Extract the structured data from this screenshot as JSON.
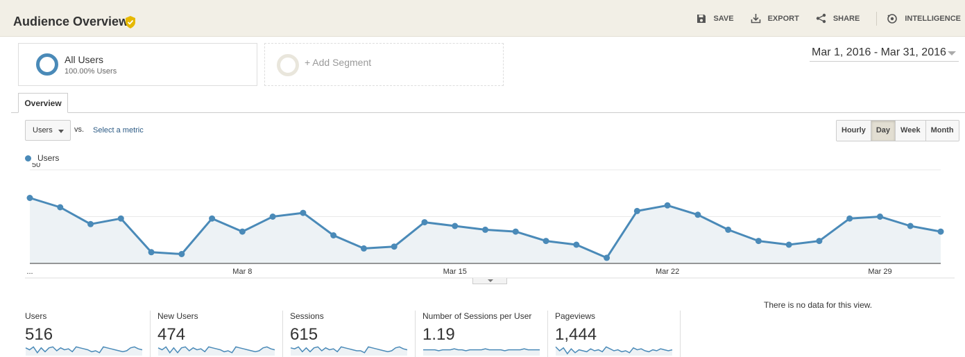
{
  "header": {
    "title": "Audience Overview",
    "actions": [
      {
        "label": "SAVE",
        "icon": "save-icon"
      },
      {
        "label": "EXPORT",
        "icon": "export-icon"
      },
      {
        "label": "SHARE",
        "icon": "share-icon"
      },
      {
        "label": "INTELLIGENCE",
        "icon": "intelligence-icon"
      }
    ]
  },
  "segments": {
    "all_users": {
      "name": "All Users",
      "subtitle": "100.00% Users"
    },
    "add_label": "+ Add Segment"
  },
  "date_range": "Mar 1, 2016 - Mar 31, 2016",
  "tabs": [
    {
      "label": "Overview",
      "active": true
    }
  ],
  "metric_bar": {
    "metric": "Users",
    "vs": "vs.",
    "select_metric": "Select a metric",
    "granularity": [
      "Hourly",
      "Day",
      "Week",
      "Month"
    ],
    "active_granularity": "Day"
  },
  "colors": {
    "series": "#4a8ab8",
    "area_fill": "#edf2f5",
    "header_bg": "#f2efe6"
  },
  "chart_data": {
    "type": "line",
    "legend": [
      "Users"
    ],
    "ylim": [
      0,
      50
    ],
    "yticks": [
      25,
      50
    ],
    "xtick_labels": [
      "...",
      "Mar 8",
      "Mar 15",
      "Mar 22",
      "Mar 29"
    ],
    "series": [
      {
        "name": "Users",
        "x": [
          "Mar 1",
          "Mar 2",
          "Mar 3",
          "Mar 4",
          "Mar 5",
          "Mar 6",
          "Mar 7",
          "Mar 8",
          "Mar 9",
          "Mar 10",
          "Mar 11",
          "Mar 12",
          "Mar 13",
          "Mar 14",
          "Mar 15",
          "Mar 16",
          "Mar 17",
          "Mar 18",
          "Mar 19",
          "Mar 20",
          "Mar 21",
          "Mar 22",
          "Mar 23",
          "Mar 24",
          "Mar 25",
          "Mar 26",
          "Mar 27",
          "Mar 28",
          "Mar 29",
          "Mar 30",
          "Mar 31"
        ],
        "values": [
          35,
          30,
          21,
          24,
          6,
          5,
          24,
          17,
          25,
          27,
          15,
          8,
          9,
          22,
          20,
          18,
          17,
          12,
          10,
          3,
          28,
          31,
          26,
          18,
          12,
          10,
          12,
          24,
          25,
          20,
          17
        ]
      }
    ]
  },
  "scorecards": [
    {
      "label": "Users",
      "value": "516",
      "spark": [
        8,
        6,
        9,
        3,
        8,
        4,
        8,
        9,
        5,
        8,
        6,
        7,
        4,
        9,
        8,
        7,
        6,
        4,
        5,
        3,
        9,
        8,
        7,
        6,
        5,
        4,
        5,
        8,
        9,
        7,
        6
      ]
    },
    {
      "label": "New Users",
      "value": "474",
      "spark": [
        8,
        6,
        9,
        3,
        8,
        3,
        8,
        9,
        5,
        8,
        6,
        7,
        4,
        9,
        8,
        7,
        6,
        4,
        5,
        3,
        9,
        8,
        7,
        6,
        5,
        4,
        5,
        8,
        9,
        7,
        6
      ]
    },
    {
      "label": "Sessions",
      "value": "615",
      "spark": [
        8,
        7,
        9,
        4,
        8,
        4,
        8,
        9,
        5,
        8,
        6,
        7,
        4,
        9,
        8,
        7,
        6,
        5,
        5,
        3,
        9,
        8,
        7,
        6,
        5,
        4,
        5,
        8,
        9,
        7,
        6
      ]
    },
    {
      "label": "Number of Sessions per User",
      "value": "1.19",
      "spark": [
        6,
        6,
        6,
        6,
        5,
        6,
        6,
        6,
        7,
        6,
        6,
        5,
        6,
        6,
        6,
        6,
        7,
        6,
        6,
        6,
        6,
        5,
        6,
        6,
        6,
        6,
        7,
        6,
        6,
        6,
        6
      ]
    },
    {
      "label": "Pageviews",
      "value": "1,444",
      "spark": [
        9,
        5,
        8,
        2,
        7,
        3,
        6,
        5,
        4,
        7,
        5,
        6,
        4,
        9,
        7,
        5,
        6,
        4,
        5,
        3,
        8,
        6,
        7,
        5,
        4,
        6,
        5,
        7,
        6,
        5,
        6
      ]
    }
  ],
  "no_data_message": "There is no data for this view."
}
